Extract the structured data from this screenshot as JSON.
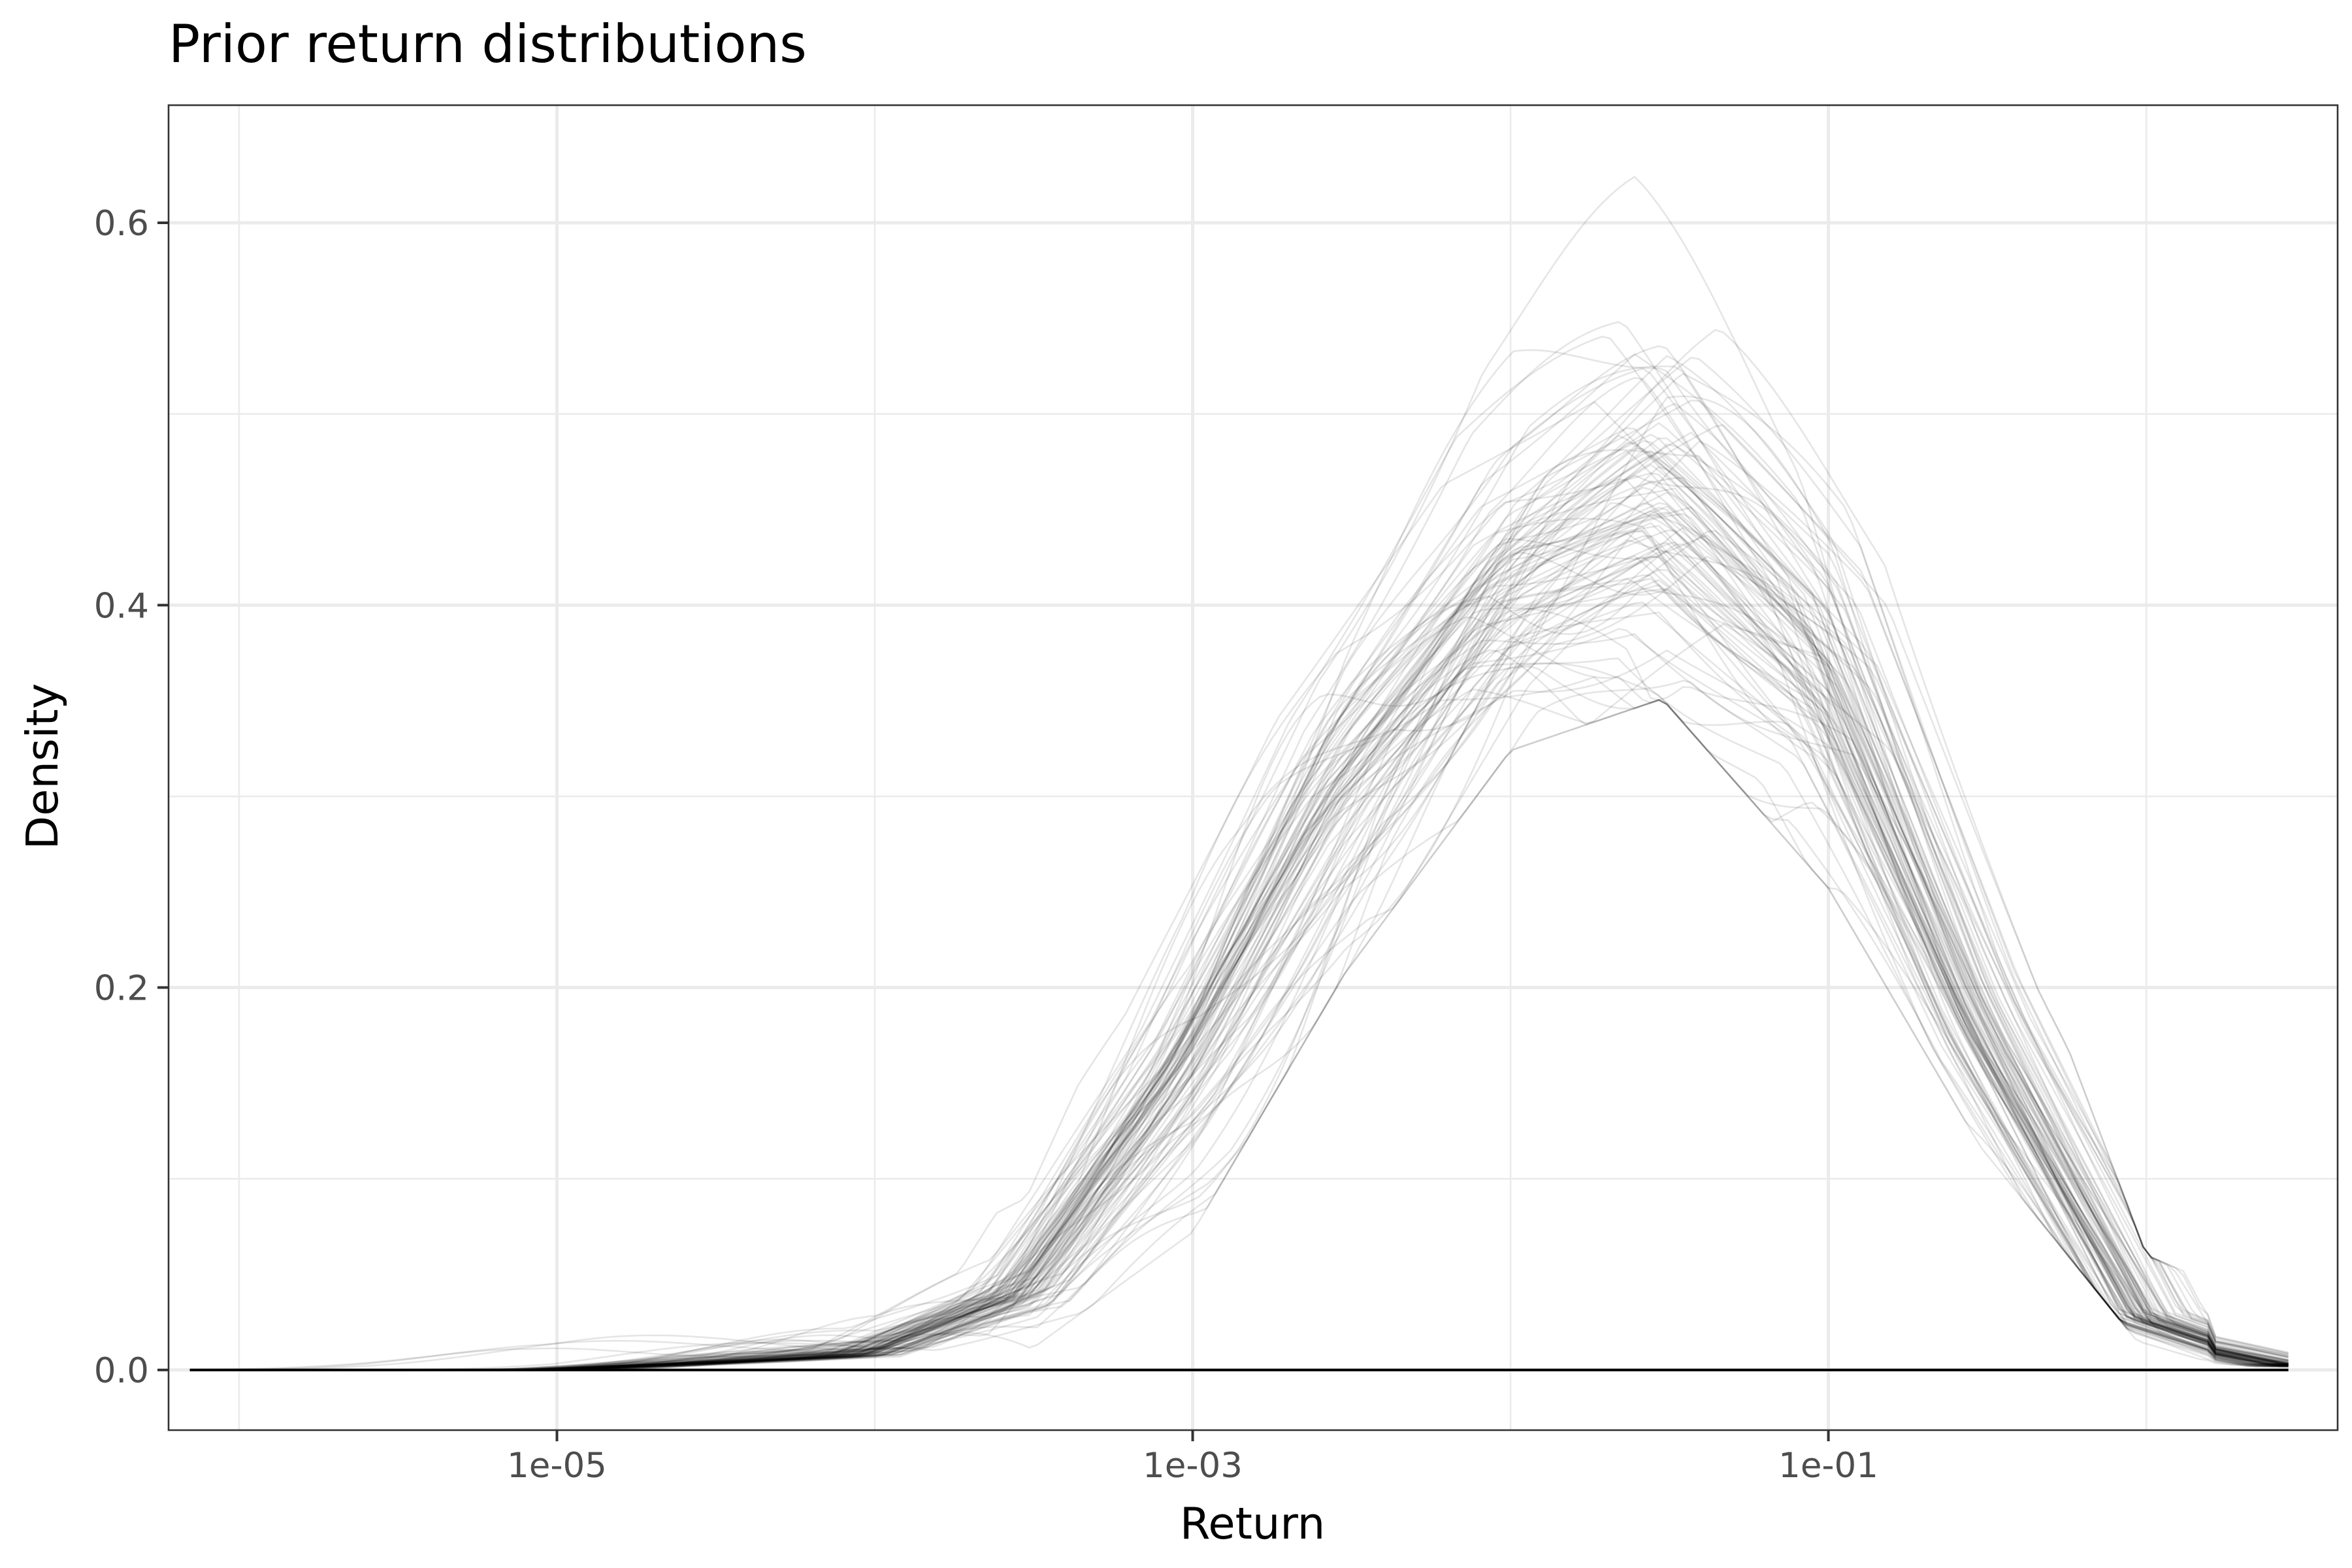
{
  "chart_data": {
    "type": "line",
    "title": "Prior return distributions",
    "xlabel": "Return",
    "ylabel": "Density",
    "x_scale": "log10",
    "xlim": [
      6e-07,
      4.0
    ],
    "ylim": [
      -0.0315,
      0.6615
    ],
    "x_ticks": [
      {
        "value": 1e-05,
        "label": "1e-05"
      },
      {
        "value": 0.001,
        "label": "1e-03"
      },
      {
        "value": 0.1,
        "label": "1e-01"
      }
    ],
    "x_minor_ticks": [
      1e-06,
      0.0001,
      0.01,
      1
    ],
    "y_ticks": [
      {
        "value": 0.0,
        "label": "0.0"
      },
      {
        "value": 0.2,
        "label": "0.2"
      },
      {
        "value": 0.4,
        "label": "0.4"
      },
      {
        "value": 0.6,
        "label": "0.6"
      }
    ],
    "y_minor_ticks": [
      0.1,
      0.3,
      0.5
    ],
    "grid": true,
    "legend": "none",
    "line_color": "#000000",
    "line_alpha": 0.1,
    "series_count": 100,
    "x_range": [
      7e-07,
      2.8
    ],
    "typical_series": {
      "x": [
        1e-06,
        1e-05,
        0.0001,
        0.0003,
        0.001,
        0.003,
        0.01,
        0.03,
        0.1,
        0.3,
        1.0,
        2.8
      ],
      "y": [
        0.0,
        0.0,
        0.008,
        0.04,
        0.17,
        0.33,
        0.45,
        0.49,
        0.4,
        0.2,
        0.03,
        0.003
      ]
    },
    "envelope": {
      "x": [
        1e-06,
        1e-05,
        0.0001,
        0.0003,
        0.001,
        0.003,
        0.01,
        0.03,
        0.1,
        0.3,
        1.0,
        2.8
      ],
      "y_min": [
        0.0,
        0.0,
        0.0,
        0.01,
        0.08,
        0.23,
        0.36,
        0.39,
        0.28,
        0.13,
        0.01,
        0.0
      ],
      "y_max": [
        0.01,
        0.017,
        0.05,
        0.09,
        0.28,
        0.44,
        0.575,
        0.655,
        0.5,
        0.29,
        0.06,
        0.028
      ]
    }
  }
}
